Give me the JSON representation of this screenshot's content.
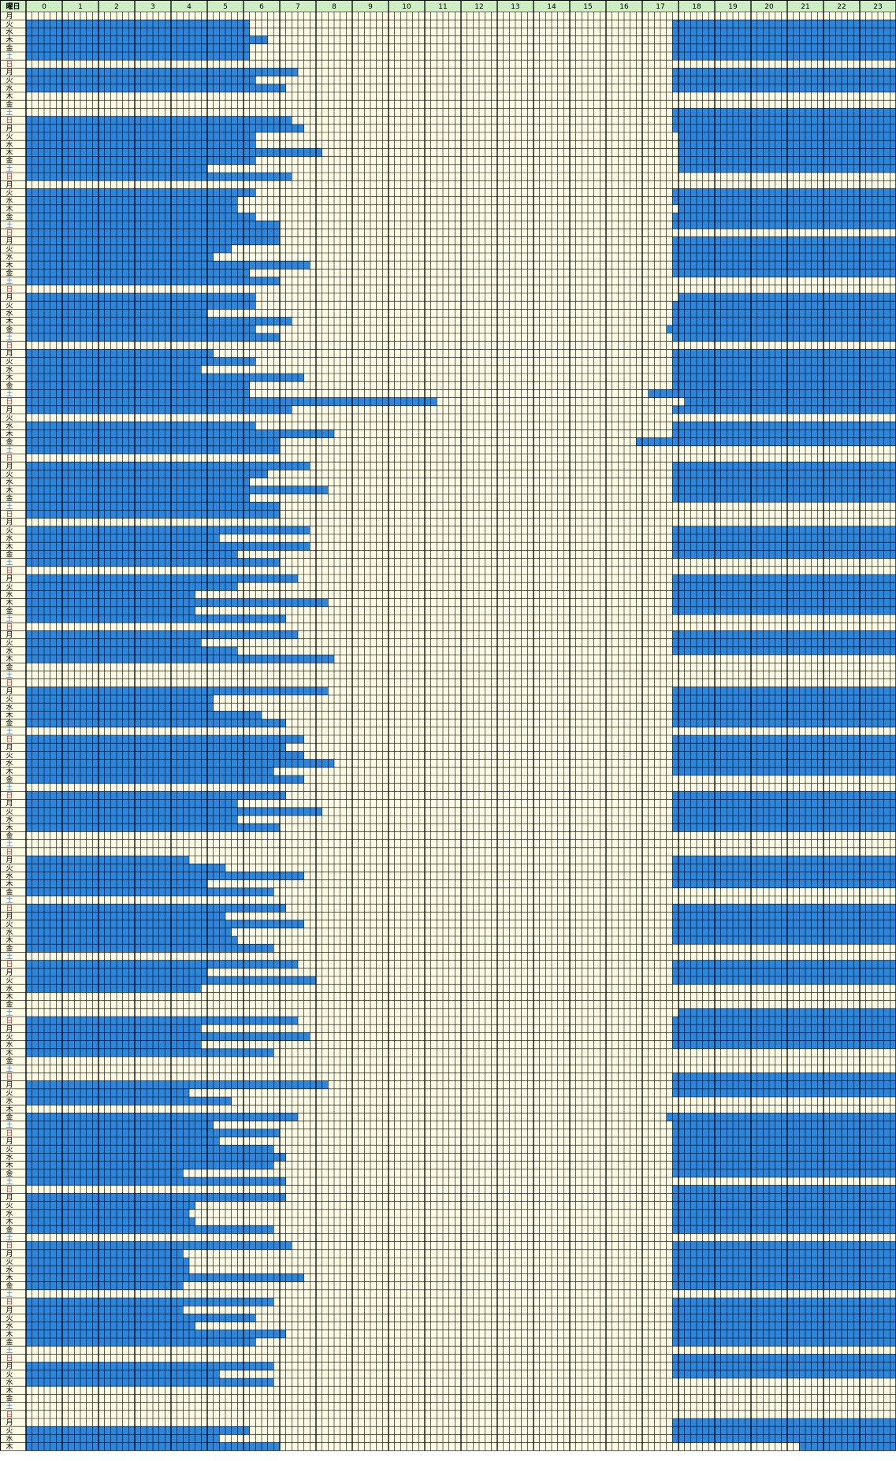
{
  "header": {
    "day_col": "曜日",
    "hours": [
      0,
      1,
      2,
      3,
      4,
      5,
      6,
      7,
      8,
      9,
      10,
      11,
      12,
      13,
      14,
      15,
      16,
      17,
      18,
      19,
      20,
      21,
      22,
      23
    ]
  },
  "fill_color": "#2b86de",
  "day_colors": {
    "土": "#1f6fd0",
    "日": "#e0202a"
  },
  "rows": [
    {
      "day": "月",
      "am": null,
      "pm": null
    },
    {
      "day": "火",
      "am": 6.17,
      "pm": 17.83
    },
    {
      "day": "水",
      "am": 6.17,
      "pm": 17.83
    },
    {
      "day": "木",
      "am": 6.67,
      "pm": 17.83
    },
    {
      "day": "金",
      "am": 6.17,
      "pm": 17.83
    },
    {
      "day": "土",
      "am": 6.17,
      "pm": 17.83
    },
    {
      "day": "日",
      "am": null,
      "pm": null
    },
    {
      "day": "月",
      "am": 7.5,
      "pm": 17.83
    },
    {
      "day": "火",
      "am": 6.33,
      "pm": 17.83
    },
    {
      "day": "水",
      "am": 7.17,
      "pm": 17.83
    },
    {
      "day": "木",
      "am": null,
      "pm": null
    },
    {
      "day": "金",
      "am": null,
      "pm": null
    },
    {
      "day": "土",
      "am": null,
      "pm": 17.83
    },
    {
      "day": "日",
      "am": 7.33,
      "pm": 17.83
    },
    {
      "day": "月",
      "am": 7.67,
      "pm": 17.83
    },
    {
      "day": "火",
      "am": 6.33,
      "pm": 18
    },
    {
      "day": "水",
      "am": 6.33,
      "pm": 18
    },
    {
      "day": "木",
      "am": 8.17,
      "pm": 18
    },
    {
      "day": "金",
      "am": 6.33,
      "pm": 18
    },
    {
      "day": "土",
      "am": 5,
      "pm": 18
    },
    {
      "day": "日",
      "am": 7.33,
      "pm": null
    },
    {
      "day": "月",
      "am": null,
      "pm": null
    },
    {
      "day": "火",
      "am": 6.33,
      "pm": 17.83
    },
    {
      "day": "水",
      "am": 5.83,
      "pm": 17.83
    },
    {
      "day": "木",
      "am": 5.83,
      "pm": 18
    },
    {
      "day": "金",
      "am": 6.33,
      "pm": 17.83
    },
    {
      "day": "土",
      "am": 7,
      "pm": 17.83
    },
    {
      "day": "日",
      "am": 7,
      "pm": null
    },
    {
      "day": "月",
      "am": 7,
      "pm": 17.83
    },
    {
      "day": "火",
      "am": 5.67,
      "pm": 17.83
    },
    {
      "day": "水",
      "am": 5.17,
      "pm": 17.83
    },
    {
      "day": "木",
      "am": 7.83,
      "pm": 17.83
    },
    {
      "day": "金",
      "am": 6.17,
      "pm": 17.83
    },
    {
      "day": "土",
      "am": 7,
      "pm": null
    },
    {
      "day": "日",
      "am": null,
      "pm": null
    },
    {
      "day": "月",
      "am": 6.33,
      "pm": 18
    },
    {
      "day": "火",
      "am": 6.33,
      "pm": 17.83
    },
    {
      "day": "水",
      "am": 5,
      "pm": 17.83
    },
    {
      "day": "木",
      "am": 7.33,
      "pm": 17.83
    },
    {
      "day": "金",
      "am": 6.33,
      "pm": 17.67
    },
    {
      "day": "土",
      "am": 7,
      "pm": 17.83
    },
    {
      "day": "日",
      "am": null,
      "pm": null
    },
    {
      "day": "月",
      "am": 5.17,
      "pm": 17.83
    },
    {
      "day": "火",
      "am": 6.33,
      "pm": 17.83
    },
    {
      "day": "水",
      "am": 4.83,
      "pm": 17.83
    },
    {
      "day": "木",
      "am": 7.67,
      "pm": 17.83
    },
    {
      "day": "金",
      "am": 6.17,
      "pm": 17.83
    },
    {
      "day": "土",
      "am": 6.17,
      "pm": 17.17
    },
    {
      "day": "日",
      "am": 11.33,
      "pm": 18.17
    },
    {
      "day": "月",
      "am": 7.33,
      "pm": 17.83
    },
    {
      "day": "火",
      "am": null,
      "pm": null
    },
    {
      "day": "水",
      "am": 6.33,
      "pm": 17.83
    },
    {
      "day": "木",
      "am": 8.5,
      "pm": 17.83
    },
    {
      "day": "金",
      "am": 7,
      "pm": 16.83
    },
    {
      "day": "土",
      "am": 7,
      "pm": null
    },
    {
      "day": "日",
      "am": null,
      "pm": null
    },
    {
      "day": "月",
      "am": 7.83,
      "pm": 17.83
    },
    {
      "day": "火",
      "am": 6.67,
      "pm": 17.83
    },
    {
      "day": "水",
      "am": 6.17,
      "pm": 17.83
    },
    {
      "day": "木",
      "am": 8.33,
      "pm": 17.83
    },
    {
      "day": "金",
      "am": 6.17,
      "pm": 17.83
    },
    {
      "day": "土",
      "am": 7,
      "pm": null
    },
    {
      "day": "日",
      "am": 7,
      "pm": null
    },
    {
      "day": "月",
      "am": null,
      "pm": null
    },
    {
      "day": "火",
      "am": 7.83,
      "pm": 17.83
    },
    {
      "day": "水",
      "am": 5.33,
      "pm": 17.83
    },
    {
      "day": "木",
      "am": 7.83,
      "pm": 17.83
    },
    {
      "day": "金",
      "am": 5.83,
      "pm": 17.83
    },
    {
      "day": "土",
      "am": 7,
      "pm": null
    },
    {
      "day": "日",
      "am": null,
      "pm": null
    },
    {
      "day": "月",
      "am": 7.5,
      "pm": 17.83
    },
    {
      "day": "火",
      "am": 5.83,
      "pm": 17.83
    },
    {
      "day": "水",
      "am": 4.67,
      "pm": 17.83
    },
    {
      "day": "木",
      "am": 8.33,
      "pm": 17.83
    },
    {
      "day": "金",
      "am": 4.67,
      "pm": 17.83
    },
    {
      "day": "土",
      "am": 7.17,
      "pm": null
    },
    {
      "day": "日",
      "am": null,
      "pm": null
    },
    {
      "day": "月",
      "am": 7.5,
      "pm": 17.83
    },
    {
      "day": "火",
      "am": 4.83,
      "pm": 17.83
    },
    {
      "day": "水",
      "am": 5.83,
      "pm": 17.83
    },
    {
      "day": "木",
      "am": 8.5,
      "pm": null
    },
    {
      "day": "金",
      "am": null,
      "pm": null
    },
    {
      "day": "土",
      "am": null,
      "pm": null
    },
    {
      "day": "日",
      "am": null,
      "pm": null
    },
    {
      "day": "月",
      "am": 8.33,
      "pm": 17.83
    },
    {
      "day": "火",
      "am": 5.17,
      "pm": 17.83
    },
    {
      "day": "水",
      "am": 5.17,
      "pm": 17.83
    },
    {
      "day": "木",
      "am": 6.5,
      "pm": 17.83
    },
    {
      "day": "金",
      "am": 7.17,
      "pm": 17.83
    },
    {
      "day": "土",
      "am": null,
      "pm": null
    },
    {
      "day": "日",
      "am": 7.67,
      "pm": 17.83
    },
    {
      "day": "月",
      "am": 7.17,
      "pm": 17.83
    },
    {
      "day": "火",
      "am": 7.67,
      "pm": 17.83
    },
    {
      "day": "水",
      "am": 8.5,
      "pm": 17.83
    },
    {
      "day": "木",
      "am": 6.83,
      "pm": 17.83
    },
    {
      "day": "金",
      "am": 7.67,
      "pm": null
    },
    {
      "day": "土",
      "am": null,
      "pm": null
    },
    {
      "day": "日",
      "am": 7.17,
      "pm": 17.83
    },
    {
      "day": "月",
      "am": 5.83,
      "pm": 17.83
    },
    {
      "day": "火",
      "am": 8.17,
      "pm": 17.83
    },
    {
      "day": "水",
      "am": 5.83,
      "pm": 17.83
    },
    {
      "day": "木",
      "am": 7,
      "pm": 17.83
    },
    {
      "day": "金",
      "am": null,
      "pm": null
    },
    {
      "day": "土",
      "am": null,
      "pm": null
    },
    {
      "day": "日",
      "am": null,
      "pm": null
    },
    {
      "day": "月",
      "am": 4.5,
      "pm": 17.83
    },
    {
      "day": "火",
      "am": 5.5,
      "pm": 17.83
    },
    {
      "day": "水",
      "am": 7.67,
      "pm": 17.83
    },
    {
      "day": "木",
      "am": 5,
      "pm": 17.83
    },
    {
      "day": "金",
      "am": 6.83,
      "pm": null
    },
    {
      "day": "土",
      "am": null,
      "pm": null
    },
    {
      "day": "日",
      "am": 7.17,
      "pm": 17.83
    },
    {
      "day": "月",
      "am": 5.5,
      "pm": 17.83
    },
    {
      "day": "火",
      "am": 7.67,
      "pm": 17.83
    },
    {
      "day": "水",
      "am": 5.67,
      "pm": 17.83
    },
    {
      "day": "木",
      "am": 5.83,
      "pm": 17.83
    },
    {
      "day": "金",
      "am": 6.83,
      "pm": null
    },
    {
      "day": "土",
      "am": null,
      "pm": null
    },
    {
      "day": "日",
      "am": 7.5,
      "pm": 17.83
    },
    {
      "day": "月",
      "am": 5,
      "pm": 17.83
    },
    {
      "day": "火",
      "am": 8,
      "pm": 17.83
    },
    {
      "day": "水",
      "am": 4.83,
      "pm": null
    },
    {
      "day": "木",
      "am": null,
      "pm": null
    },
    {
      "day": "金",
      "am": null,
      "pm": null
    },
    {
      "day": "土",
      "am": null,
      "pm": 18
    },
    {
      "day": "日",
      "am": 7.5,
      "pm": 17.83
    },
    {
      "day": "月",
      "am": 4.83,
      "pm": 17.83
    },
    {
      "day": "火",
      "am": 7.83,
      "pm": 17.83
    },
    {
      "day": "水",
      "am": 4.83,
      "pm": 17.83
    },
    {
      "day": "木",
      "am": 6.83,
      "pm": null
    },
    {
      "day": "金",
      "am": null,
      "pm": null
    },
    {
      "day": "土",
      "am": null,
      "pm": null
    },
    {
      "day": "日",
      "am": null,
      "pm": 17.83
    },
    {
      "day": "月",
      "am": 8.33,
      "pm": 17.83
    },
    {
      "day": "火",
      "am": 4.5,
      "pm": 17.83
    },
    {
      "day": "水",
      "am": 5.67,
      "pm": null
    },
    {
      "day": "木",
      "am": null,
      "pm": null
    },
    {
      "day": "金",
      "am": 7.5,
      "pm": 17.67
    },
    {
      "day": "土",
      "am": 5.17,
      "pm": 17.83
    },
    {
      "day": "日",
      "am": 7,
      "pm": 17.83
    },
    {
      "day": "月",
      "am": 5.33,
      "pm": 17.83
    },
    {
      "day": "火",
      "am": 6.83,
      "pm": 17.83
    },
    {
      "day": "水",
      "am": 7.17,
      "pm": 17.83
    },
    {
      "day": "木",
      "am": 6.83,
      "pm": 17.83
    },
    {
      "day": "金",
      "am": 4.33,
      "pm": 17.83
    },
    {
      "day": "土",
      "am": 7.17,
      "pm": null
    },
    {
      "day": "日",
      "am": null,
      "pm": 17.83
    },
    {
      "day": "月",
      "am": 7.17,
      "pm": 17.83
    },
    {
      "day": "火",
      "am": 4.67,
      "pm": 17.83
    },
    {
      "day": "水",
      "am": 4.5,
      "pm": 17.83
    },
    {
      "day": "木",
      "am": 4.67,
      "pm": 17.83
    },
    {
      "day": "金",
      "am": 6.83,
      "pm": 17.83
    },
    {
      "day": "土",
      "am": null,
      "pm": null
    },
    {
      "day": "日",
      "am": 7.33,
      "pm": 17.83
    },
    {
      "day": "月",
      "am": 4.33,
      "pm": 17.83
    },
    {
      "day": "火",
      "am": 4.5,
      "pm": 17.83
    },
    {
      "day": "水",
      "am": 4.5,
      "pm": 17.83
    },
    {
      "day": "木",
      "am": 7.67,
      "pm": 17.83
    },
    {
      "day": "金",
      "am": 4.33,
      "pm": 17.83
    },
    {
      "day": "土",
      "am": null,
      "pm": null
    },
    {
      "day": "日",
      "am": 6.83,
      "pm": 17.83
    },
    {
      "day": "月",
      "am": 4.33,
      "pm": 17.83
    },
    {
      "day": "火",
      "am": 6.33,
      "pm": 17.83
    },
    {
      "day": "水",
      "am": 4.67,
      "pm": 17.83
    },
    {
      "day": "木",
      "am": 7.17,
      "pm": 17.83
    },
    {
      "day": "金",
      "am": 6.33,
      "pm": 17.83
    },
    {
      "day": "土",
      "am": null,
      "pm": null
    },
    {
      "day": "日",
      "am": null,
      "pm": 17.83
    },
    {
      "day": "月",
      "am": 6.83,
      "pm": 17.83
    },
    {
      "day": "火",
      "am": 5.33,
      "pm": 17.83
    },
    {
      "day": "水",
      "am": 6.83,
      "pm": null
    },
    {
      "day": "木",
      "am": null,
      "pm": null
    },
    {
      "day": "金",
      "am": null,
      "pm": null
    },
    {
      "day": "土",
      "am": null,
      "pm": null
    },
    {
      "day": "日",
      "am": null,
      "pm": null
    },
    {
      "day": "月",
      "am": null,
      "pm": 17.83
    },
    {
      "day": "火",
      "am": 6.17,
      "pm": 17.83
    },
    {
      "day": "水",
      "am": 5.33,
      "pm": 17.83
    },
    {
      "day": "木",
      "am": 7,
      "pm": 21.33
    }
  ]
}
